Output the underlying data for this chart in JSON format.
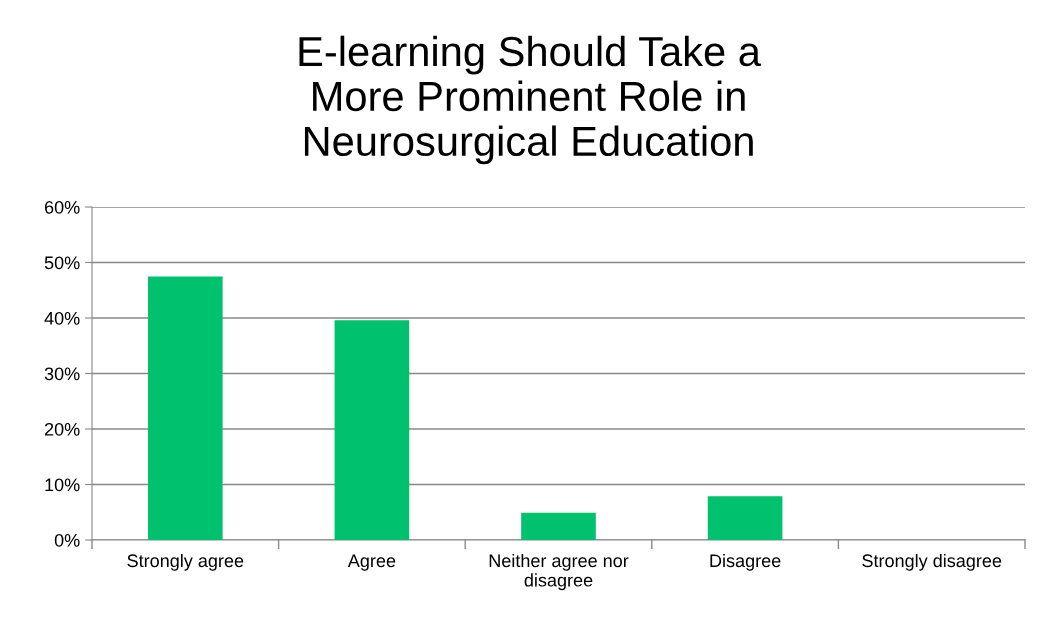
{
  "chart_data": {
    "type": "bar",
    "title": "E-learning Should Take a\nMore Prominent Role in\nNeurosurgical Education",
    "categories": [
      "Strongly agree",
      "Agree",
      "Neither agree nor\ndisagree",
      "Disagree",
      "Strongly disagree"
    ],
    "values": [
      47.5,
      39.6,
      4.9,
      7.9,
      0
    ],
    "color": "#00c16e",
    "ylim": [
      0,
      60
    ],
    "yticks": [
      {
        "value": 0,
        "label": "0%"
      },
      {
        "value": 10,
        "label": "10%"
      },
      {
        "value": 20,
        "label": "20%"
      },
      {
        "value": 30,
        "label": "30%"
      },
      {
        "value": 40,
        "label": "40%"
      },
      {
        "value": 50,
        "label": "50%"
      },
      {
        "value": 60,
        "label": "60%"
      }
    ],
    "grid": "y",
    "legend": false
  }
}
